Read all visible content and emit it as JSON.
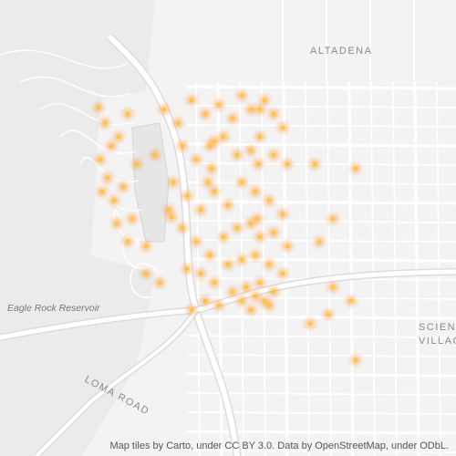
{
  "map": {
    "labels": {
      "altadena": "ALTADENA",
      "reservoir": "Eagle Rock Reservoir",
      "science_1": "SCIENCE",
      "science_2": "VILLAGE",
      "road": "LOMA ROAD"
    },
    "attribution": "Map tiles by Carto, under CC BY 3.0. Data by OpenStreetMap, under ODbL."
  },
  "points": {
    "color": "#ff9a40",
    "dense_color": "#ffc41f",
    "lon": [
      -118.1784,
      -118.177,
      -118.1756,
      -118.178,
      -118.174,
      -118.172,
      -118.1764,
      -118.173,
      -118.175,
      -118.171,
      -118.1776,
      -118.17,
      -118.1744,
      -118.168,
      -118.172,
      -118.164,
      -118.161,
      -118.158,
      -118.155,
      -118.152,
      -118.149,
      -118.147,
      -118.145,
      -118.142,
      -118.14,
      -118.138,
      -118.16,
      -118.157,
      -118.154,
      -118.151,
      -118.148,
      -118.145,
      -118.143,
      -118.14,
      -118.137,
      -118.162,
      -118.159,
      -118.156,
      -118.153,
      -118.15,
      -118.147,
      -118.144,
      -118.141,
      -118.138,
      -118.16,
      -118.157,
      -118.154,
      -118.151,
      -118.148,
      -118.145,
      -118.143,
      -118.14,
      -118.137,
      -118.159,
      -118.156,
      -118.153,
      -118.15,
      -118.147,
      -118.144,
      -118.141,
      -118.138,
      -118.155,
      -118.152,
      -118.149,
      -118.146,
      -118.144,
      -118.142,
      -118.14,
      -118.143,
      -118.141,
      -118.145,
      -118.147,
      -118.143,
      -118.1434,
      -118.1436,
      -118.153,
      -118.1536,
      -118.1544,
      -118.131,
      -118.122,
      -118.13,
      -118.127,
      -118.123,
      -118.128,
      -118.132,
      -118.122,
      -118.127,
      -118.166,
      -118.163,
      -118.1624,
      -118.168,
      -118.165,
      -118.158
    ],
    "lat": [
      34.1964,
      34.193,
      34.188,
      34.185,
      34.19,
      34.195,
      34.181,
      34.179,
      34.176,
      34.172,
      34.178,
      34.184,
      34.171,
      34.166,
      34.167,
      34.196,
      34.193,
      34.198,
      34.195,
      34.197,
      34.194,
      34.199,
      34.196,
      34.198,
      34.195,
      34.192,
      34.188,
      34.185,
      34.188,
      34.19,
      34.186,
      34.187,
      34.19,
      34.186,
      34.184,
      34.18,
      34.177,
      34.174,
      34.178,
      34.175,
      34.18,
      34.178,
      34.176,
      34.173,
      34.17,
      34.167,
      34.164,
      34.168,
      34.17,
      34.171,
      34.168,
      34.169,
      34.166,
      34.161,
      34.16,
      34.158,
      34.162,
      34.163,
      34.164,
      34.162,
      34.16,
      34.154,
      34.153,
      34.156,
      34.157,
      34.155,
      34.154,
      34.156,
      34.158,
      34.153,
      34.152,
      34.154,
      34.196,
      34.184,
      34.172,
      34.189,
      34.183,
      34.18,
      34.184,
      34.183,
      34.167,
      34.157,
      34.154,
      34.151,
      34.149,
      34.141,
      34.172,
      34.186,
      34.174,
      34.1724,
      34.16,
      34.158,
      34.152
    ]
  }
}
